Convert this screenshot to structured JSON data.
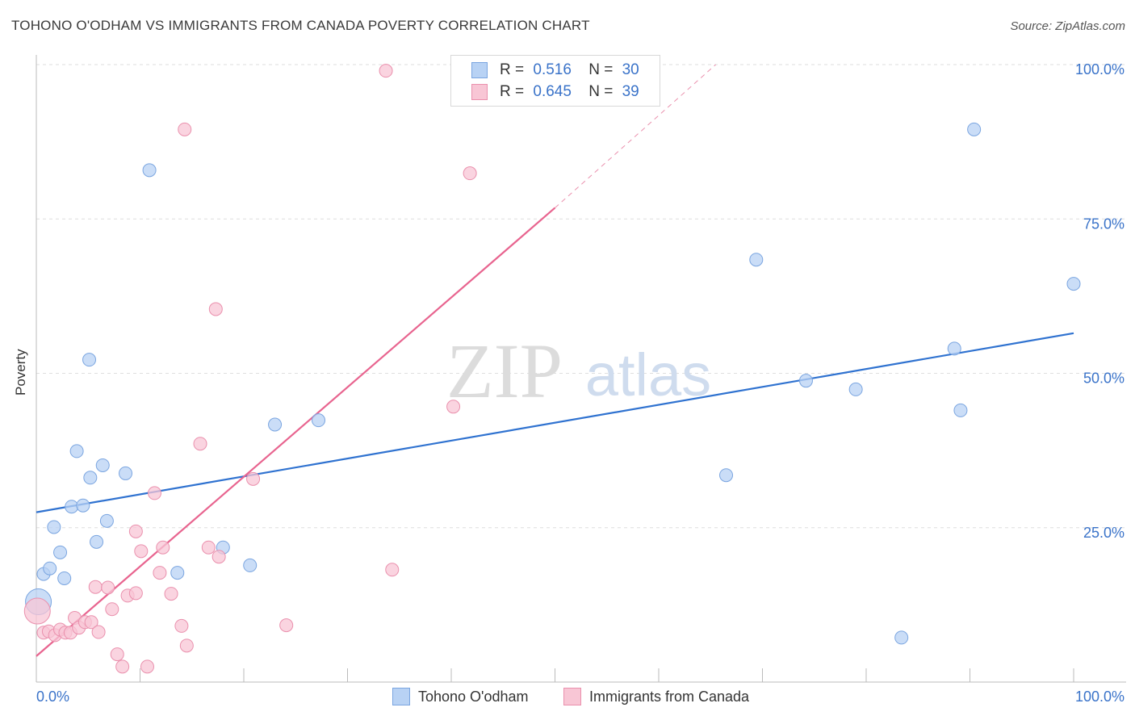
{
  "header": {
    "title": "TOHONO O'ODHAM VS IMMIGRANTS FROM CANADA POVERTY CORRELATION CHART",
    "source": "Source: ZipAtlas.com"
  },
  "legend": {
    "series1": {
      "r_label": "R =",
      "r_value": "0.516",
      "n_label": "N =",
      "n_value": "30"
    },
    "series2": {
      "r_label": "R =",
      "r_value": "0.645",
      "n_label": "N =",
      "n_value": "39"
    }
  },
  "bottom_legend": {
    "series1": "Tohono O'odham",
    "series2": "Immigrants from Canada"
  },
  "watermark": {
    "zip": "ZIP",
    "atlas": "atlas"
  },
  "colors": {
    "series1_fill": "#b8d2f4",
    "series1_stroke": "#7aa5e0",
    "series1_line": "#2f72d0",
    "series2_fill": "#f8c6d5",
    "series2_stroke": "#ea90ad",
    "series2_line": "#e8648f",
    "axis_text": "#3a73c9"
  },
  "chart_data": {
    "type": "scatter",
    "title": "TOHONO O'ODHAM VS IMMIGRANTS FROM CANADA POVERTY CORRELATION CHART",
    "xlabel": "",
    "ylabel": "Poverty",
    "xlim": [
      0,
      100
    ],
    "ylim": [
      0,
      100
    ],
    "x_tick_labels": [
      "0.0%",
      "100.0%"
    ],
    "y_tick_labels": [
      "25.0%",
      "50.0%",
      "75.0%",
      "100.0%"
    ],
    "y_ticks": [
      25,
      50,
      75,
      100
    ],
    "grid": true,
    "legend_position": "top-center",
    "series": [
      {
        "name": "Tohono O'odham",
        "R": 0.516,
        "N": 30,
        "trend": {
          "x0": 0,
          "y0": 27.5,
          "x1": 100,
          "y1": 56.5
        },
        "points": [
          {
            "x": 0.2,
            "y": 13.0,
            "large": true
          },
          {
            "x": 0.7,
            "y": 17.5
          },
          {
            "x": 1.3,
            "y": 18.4
          },
          {
            "x": 1.7,
            "y": 25.1
          },
          {
            "x": 2.3,
            "y": 21.0
          },
          {
            "x": 2.7,
            "y": 16.8
          },
          {
            "x": 3.4,
            "y": 28.4
          },
          {
            "x": 3.9,
            "y": 37.4
          },
          {
            "x": 4.5,
            "y": 28.6
          },
          {
            "x": 5.1,
            "y": 52.2
          },
          {
            "x": 5.2,
            "y": 33.1
          },
          {
            "x": 5.8,
            "y": 22.7
          },
          {
            "x": 6.4,
            "y": 35.1
          },
          {
            "x": 6.8,
            "y": 26.1
          },
          {
            "x": 8.6,
            "y": 33.8
          },
          {
            "x": 10.9,
            "y": 82.9
          },
          {
            "x": 13.6,
            "y": 17.7
          },
          {
            "x": 18.0,
            "y": 21.8
          },
          {
            "x": 20.6,
            "y": 18.9
          },
          {
            "x": 23.0,
            "y": 41.7
          },
          {
            "x": 27.2,
            "y": 42.4
          },
          {
            "x": 66.5,
            "y": 33.5
          },
          {
            "x": 69.4,
            "y": 68.4
          },
          {
            "x": 74.2,
            "y": 48.8
          },
          {
            "x": 79.0,
            "y": 47.4
          },
          {
            "x": 83.4,
            "y": 7.2
          },
          {
            "x": 88.5,
            "y": 54.0
          },
          {
            "x": 89.1,
            "y": 44.0
          },
          {
            "x": 90.4,
            "y": 89.5
          },
          {
            "x": 100.0,
            "y": 64.5
          }
        ]
      },
      {
        "name": "Immigrants from Canada",
        "R": 0.645,
        "N": 39,
        "trend": {
          "x0": 0,
          "y0": 4.2,
          "x1": 50,
          "y1": 76.8
        },
        "trend_extended_to": {
          "x": 65.5,
          "y": 100
        },
        "points": [
          {
            "x": 0.1,
            "y": 11.5,
            "large": true
          },
          {
            "x": 0.7,
            "y": 8.0
          },
          {
            "x": 1.2,
            "y": 8.2
          },
          {
            "x": 1.8,
            "y": 7.6
          },
          {
            "x": 2.3,
            "y": 8.5
          },
          {
            "x": 2.8,
            "y": 8.0
          },
          {
            "x": 3.3,
            "y": 8.0
          },
          {
            "x": 3.7,
            "y": 10.4
          },
          {
            "x": 4.1,
            "y": 8.8
          },
          {
            "x": 4.7,
            "y": 9.7
          },
          {
            "x": 5.3,
            "y": 9.7
          },
          {
            "x": 5.7,
            "y": 15.4
          },
          {
            "x": 6.0,
            "y": 8.1
          },
          {
            "x": 6.9,
            "y": 15.3
          },
          {
            "x": 7.3,
            "y": 11.8
          },
          {
            "x": 7.8,
            "y": 4.5
          },
          {
            "x": 8.3,
            "y": 2.5
          },
          {
            "x": 8.8,
            "y": 14.0
          },
          {
            "x": 9.6,
            "y": 14.4
          },
          {
            "x": 9.6,
            "y": 24.4
          },
          {
            "x": 10.1,
            "y": 21.2
          },
          {
            "x": 10.7,
            "y": 2.5
          },
          {
            "x": 11.4,
            "y": 30.6
          },
          {
            "x": 11.9,
            "y": 17.7
          },
          {
            "x": 12.2,
            "y": 21.8
          },
          {
            "x": 13.0,
            "y": 14.3
          },
          {
            "x": 14.0,
            "y": 9.1
          },
          {
            "x": 14.5,
            "y": 5.9
          },
          {
            "x": 14.3,
            "y": 89.5
          },
          {
            "x": 15.8,
            "y": 38.6
          },
          {
            "x": 16.6,
            "y": 21.8
          },
          {
            "x": 17.3,
            "y": 60.4
          },
          {
            "x": 17.6,
            "y": 20.3
          },
          {
            "x": 20.9,
            "y": 32.9
          },
          {
            "x": 24.1,
            "y": 9.2
          },
          {
            "x": 34.3,
            "y": 18.2
          },
          {
            "x": 33.7,
            "y": 99.0
          },
          {
            "x": 40.2,
            "y": 44.6
          },
          {
            "x": 41.8,
            "y": 82.4
          }
        ]
      }
    ]
  }
}
